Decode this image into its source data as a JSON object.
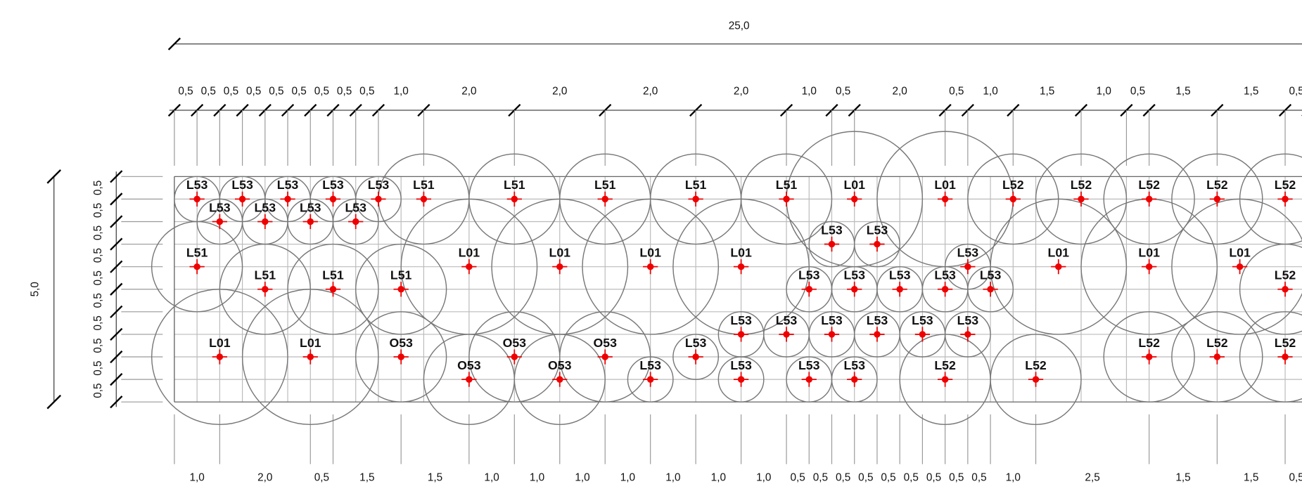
{
  "top_dims": {
    "total": "25,0",
    "segments": [
      "0,5",
      "0,5",
      "0,5",
      "0,5",
      "0,5",
      "0,5",
      "0,5",
      "0,5",
      "0,5",
      "1,0",
      "2,0",
      "2,0",
      "2,0",
      "2,0",
      "1,0",
      "0,5",
      "2,0",
      "0,5",
      "1,0",
      "1,5",
      "1,0",
      "0,5",
      "1,5",
      "1,5",
      "0,5"
    ]
  },
  "left_dims": {
    "total": "5,0",
    "segments": [
      "0,5",
      "0,5",
      "0,5",
      "0,5",
      "0,5",
      "0,5",
      "0,5",
      "0,5",
      "0,5",
      "0,5"
    ]
  },
  "bottom_dims": {
    "segments": [
      "1,0",
      "2,0",
      "0,5",
      "1,5",
      "1,5",
      "1,0",
      "1,0",
      "1,0",
      "1,0",
      "1,0",
      "1,0",
      "1,0",
      "0,5",
      "0,5",
      "0,5",
      "0,5",
      "0,5",
      "0,5",
      "0,5",
      "0,5",
      "0,5",
      "1,0",
      "2,5",
      "1,5",
      "1,5",
      "0,5"
    ]
  },
  "plants": [
    "L53",
    "L53",
    "L53",
    "L53",
    "L53",
    "L51",
    "L51",
    "L51",
    "L51",
    "L51",
    "L01",
    "L01",
    "L52",
    "L52",
    "L52",
    "L52",
    "L52",
    "L53",
    "L53",
    "L53",
    "L53",
    "L53",
    "L53",
    "L51",
    "L01",
    "L01",
    "L01",
    "L01",
    "L53",
    "L01",
    "L01",
    "L01",
    "L51",
    "L51",
    "L51",
    "L53",
    "L53",
    "L53",
    "L53",
    "L53",
    "L52",
    "L53",
    "L53",
    "L53",
    "L53",
    "L53",
    "L53",
    "L01",
    "L01",
    "O53",
    "O53",
    "O53",
    "L53",
    "L52",
    "L52",
    "L52",
    "O53",
    "O53",
    "L53",
    "L53",
    "L53",
    "L53",
    "L52",
    "L52"
  ]
}
